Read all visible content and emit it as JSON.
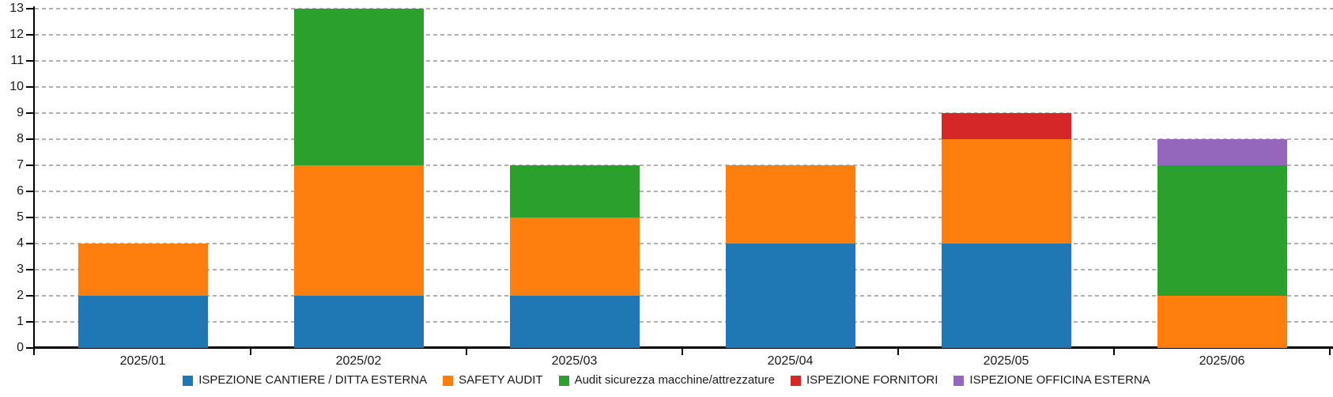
{
  "colors": {
    "axis": "#000000",
    "grid": "#b0b0b0",
    "text": "#1a1a1a",
    "series_blue": "#1f77b4",
    "series_orange": "#ff7f0e",
    "series_green": "#2ca02c",
    "series_red": "#d62728",
    "series_purple": "#9467bd"
  },
  "chart_data": {
    "type": "bar",
    "stacked": true,
    "title": "",
    "xlabel": "",
    "ylabel": "",
    "categories": [
      "2025/01",
      "2025/02",
      "2025/03",
      "2025/04",
      "2025/05",
      "2025/06"
    ],
    "series": [
      {
        "name": "ISPEZIONE CANTIERE / DITTA ESTERNA",
        "color": "#1f77b4",
        "values": [
          2,
          2,
          2,
          4,
          4,
          0
        ]
      },
      {
        "name": "SAFETY AUDIT",
        "color": "#ff7f0e",
        "values": [
          2,
          5,
          3,
          3,
          4,
          2
        ]
      },
      {
        "name": "Audit sicurezza macchine/attrezzature",
        "color": "#2ca02c",
        "values": [
          0,
          6,
          2,
          0,
          0,
          5
        ]
      },
      {
        "name": "ISPEZIONE FORNITORI",
        "color": "#d62728",
        "values": [
          0,
          0,
          0,
          0,
          1,
          0
        ]
      },
      {
        "name": "ISPEZIONE OFFICINA ESTERNA",
        "color": "#9467bd",
        "values": [
          0,
          0,
          0,
          0,
          0,
          1
        ]
      }
    ],
    "totals": [
      4,
      13,
      7,
      7,
      9,
      8
    ],
    "ylim": [
      0,
      13
    ],
    "yticks": [
      0,
      1,
      2,
      3,
      4,
      5,
      6,
      7,
      8,
      9,
      10,
      11,
      12,
      13
    ],
    "grid": "horizontal-dashed",
    "legend_position": "bottom-center"
  }
}
